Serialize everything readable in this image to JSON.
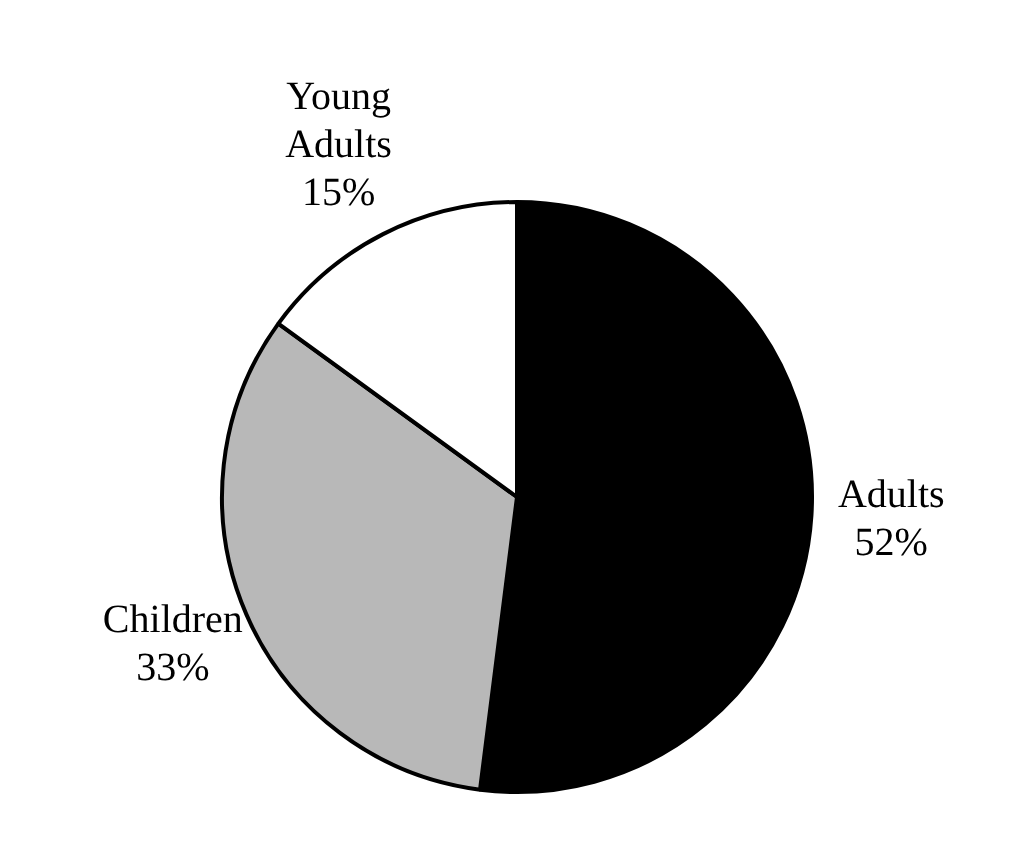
{
  "chart_data": {
    "type": "pie",
    "categories": [
      "Adults",
      "Children",
      "Young Adults"
    ],
    "values": [
      52,
      33,
      15
    ],
    "colors": [
      "#000000",
      "#b8b8b8",
      "#ffffff"
    ],
    "value_labels": [
      "52%",
      "33%",
      "15%"
    ],
    "legend": false
  }
}
